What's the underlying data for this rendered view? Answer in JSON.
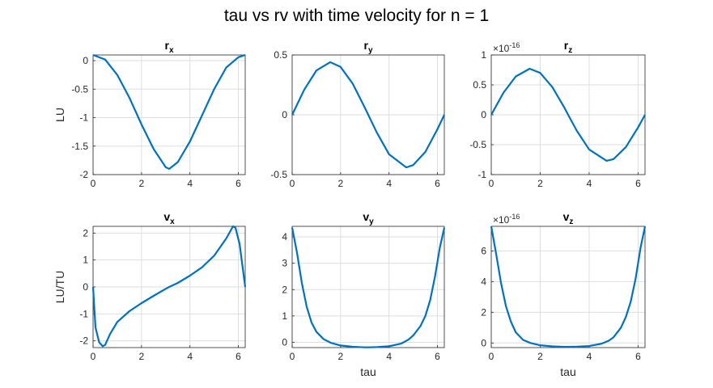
{
  "figure": {
    "title": "tau vs rv with time velocity for n = 1"
  },
  "colors": {
    "line": "#0072BD",
    "grid": "#dedede",
    "axis": "#262626",
    "background": "#ffffff"
  },
  "chart_data": [
    {
      "type": "line",
      "title": "r",
      "title_sub": "x",
      "xlabel": "",
      "ylabel": "LU",
      "exp_label": "",
      "xlim": [
        0,
        6.2832
      ],
      "ylim": [
        -2,
        0.1
      ],
      "xticks": [
        0,
        2,
        4,
        6
      ],
      "xticklabels": [
        "0",
        "2",
        "4",
        "6"
      ],
      "yticks": [
        -2,
        -1.5,
        -1,
        -0.5,
        0
      ],
      "yticklabels": [
        "-2",
        "-1.5",
        "-1",
        "-0.5",
        "0"
      ],
      "grid": true,
      "legend": "none",
      "series": [
        {
          "x": [
            0,
            0.5,
            1,
            1.5,
            2,
            2.5,
            3,
            3.1416,
            3.5,
            4,
            4.5,
            5,
            5.5,
            6,
            6.2832
          ],
          "y": [
            0.1,
            0.02,
            -0.25,
            -0.65,
            -1.12,
            -1.55,
            -1.87,
            -1.9,
            -1.78,
            -1.42,
            -0.96,
            -0.5,
            -0.12,
            0.06,
            0.1
          ]
        }
      ]
    },
    {
      "type": "line",
      "title": "r",
      "title_sub": "y",
      "xlabel": "",
      "ylabel": "",
      "exp_label": "",
      "xlim": [
        0,
        6.2832
      ],
      "ylim": [
        -0.5,
        0.5
      ],
      "xticks": [
        0,
        2,
        4,
        6
      ],
      "xticklabels": [
        "0",
        "2",
        "4",
        "6"
      ],
      "yticks": [
        -0.5,
        0,
        0.5
      ],
      "yticklabels": [
        "-0.5",
        "0",
        "0.5"
      ],
      "grid": true,
      "legend": "none",
      "series": [
        {
          "x": [
            0,
            0.5,
            1,
            1.5708,
            2,
            2.5,
            3,
            3.1416,
            3.5,
            4,
            4.7124,
            5,
            5.5,
            6,
            6.2832
          ],
          "y": [
            0,
            0.21,
            0.37,
            0.44,
            0.4,
            0.26,
            0.06,
            0,
            -0.15,
            -0.33,
            -0.44,
            -0.42,
            -0.31,
            -0.12,
            0
          ]
        }
      ]
    },
    {
      "type": "line",
      "title": "r",
      "title_sub": "z",
      "xlabel": "",
      "ylabel": "",
      "exp_label": "×10",
      "exp_power": "-16",
      "xlim": [
        0,
        6.2832
      ],
      "ylim": [
        -1,
        1
      ],
      "xticks": [
        0,
        2,
        4,
        6
      ],
      "xticklabels": [
        "0",
        "2",
        "4",
        "6"
      ],
      "yticks": [
        -1,
        -0.5,
        0,
        0.5,
        1
      ],
      "yticklabels": [
        "-1",
        "-0.5",
        "0",
        "0.5",
        "1"
      ],
      "grid": true,
      "legend": "none",
      "series": [
        {
          "x": [
            0,
            0.5,
            1,
            1.5708,
            2,
            2.5,
            3,
            3.1416,
            3.5,
            4,
            4.7124,
            5,
            5.5,
            6,
            6.2832
          ],
          "y": [
            0,
            0.37,
            0.64,
            0.77,
            0.7,
            0.46,
            0.11,
            0,
            -0.27,
            -0.58,
            -0.77,
            -0.74,
            -0.54,
            -0.21,
            0
          ]
        }
      ]
    },
    {
      "type": "line",
      "title": "v",
      "title_sub": "x",
      "xlabel": "",
      "ylabel": "LU/TU",
      "exp_label": "",
      "xlim": [
        0,
        6.2832
      ],
      "ylim": [
        -2.25,
        2.25
      ],
      "xticks": [
        0,
        2,
        4,
        6
      ],
      "xticklabels": [
        "0",
        "2",
        "4",
        "6"
      ],
      "yticks": [
        -2,
        -1,
        0,
        1,
        2
      ],
      "yticklabels": [
        "-2",
        "-1",
        "0",
        "1",
        "2"
      ],
      "grid": true,
      "legend": "none",
      "series": [
        {
          "x": [
            0,
            0.1,
            0.25,
            0.4,
            0.5,
            0.7,
            1,
            1.5,
            2,
            2.5,
            3,
            3.1416,
            3.5,
            4,
            4.5,
            5,
            5.5,
            5.78,
            5.88,
            6.05,
            6.2832
          ],
          "y": [
            0,
            -1.5,
            -2.05,
            -2.2,
            -2.15,
            -1.75,
            -1.3,
            -0.9,
            -0.6,
            -0.33,
            -0.07,
            0,
            0.15,
            0.42,
            0.73,
            1.16,
            1.8,
            2.25,
            2.2,
            1.6,
            0
          ]
        }
      ]
    },
    {
      "type": "line",
      "title": "v",
      "title_sub": "y",
      "xlabel": "tau",
      "ylabel": "",
      "exp_label": "",
      "xlim": [
        0,
        6.2832
      ],
      "ylim": [
        -0.2,
        4.4
      ],
      "xticks": [
        0,
        2,
        4,
        6
      ],
      "xticklabels": [
        "0",
        "2",
        "4",
        "6"
      ],
      "yticks": [
        0,
        1,
        2,
        3,
        4
      ],
      "yticklabels": [
        "0",
        "1",
        "2",
        "3",
        "4"
      ],
      "grid": true,
      "legend": "none",
      "series": [
        {
          "x": [
            0,
            0.2,
            0.4,
            0.6,
            0.8,
            1,
            1.3,
            1.6,
            2,
            2.5,
            3,
            3.1416,
            3.5,
            4,
            4.5,
            4.8,
            5,
            5.3,
            5.5,
            5.7,
            5.9,
            6.1,
            6.2832
          ],
          "y": [
            4.35,
            3.4,
            2.25,
            1.35,
            0.75,
            0.4,
            0.12,
            -0.02,
            -0.12,
            -0.17,
            -0.19,
            -0.19,
            -0.18,
            -0.15,
            -0.05,
            0.1,
            0.26,
            0.62,
            1.0,
            1.6,
            2.5,
            3.6,
            4.35
          ]
        }
      ]
    },
    {
      "type": "line",
      "title": "v",
      "title_sub": "z",
      "xlabel": "tau",
      "ylabel": "",
      "exp_label": "×10",
      "exp_power": "-16",
      "xlim": [
        0,
        6.2832
      ],
      "ylim": [
        -0.3,
        7.6
      ],
      "xticks": [
        0,
        2,
        4,
        6
      ],
      "xticklabels": [
        "0",
        "2",
        "4",
        "6"
      ],
      "yticks": [
        0,
        2,
        4,
        6
      ],
      "yticklabels": [
        "0",
        "2",
        "4",
        "6"
      ],
      "grid": true,
      "legend": "none",
      "series": [
        {
          "x": [
            0,
            0.2,
            0.4,
            0.6,
            0.8,
            1,
            1.3,
            1.6,
            2,
            2.5,
            3,
            3.1416,
            3.5,
            4,
            4.5,
            4.8,
            5,
            5.3,
            5.5,
            5.7,
            5.9,
            6.1,
            6.2832
          ],
          "y": [
            7.6,
            5.8,
            3.9,
            2.4,
            1.4,
            0.7,
            0.2,
            0.0,
            -0.15,
            -0.22,
            -0.25,
            -0.25,
            -0.24,
            -0.2,
            -0.05,
            0.15,
            0.38,
            1.0,
            1.7,
            2.7,
            4.2,
            6.2,
            7.6
          ]
        }
      ]
    }
  ]
}
